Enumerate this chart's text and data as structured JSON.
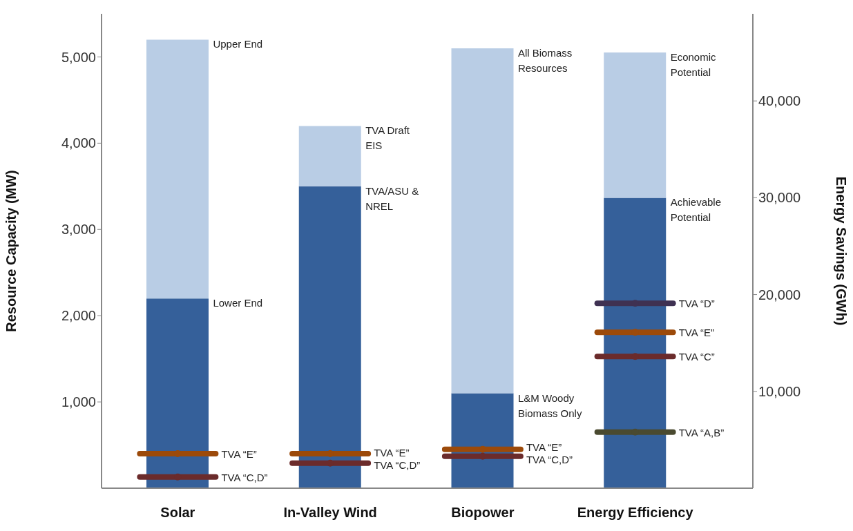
{
  "chart_data": {
    "type": "bar",
    "stacked": true,
    "categories": [
      "Solar",
      "In-Valley Wind",
      "Biopower",
      "Energy Efficiency"
    ],
    "ylabel": "Resource Capacity (MW)",
    "y2label": "Energy Savings (GWh)",
    "ylim": [
      0,
      5500
    ],
    "yticks": [
      {
        "value": 1000,
        "label": "1,000"
      },
      {
        "value": 2000,
        "label": "2,000"
      },
      {
        "value": 3000,
        "label": "3,000"
      },
      {
        "value": 4000,
        "label": "4,000"
      },
      {
        "value": 5000,
        "label": "5,000"
      }
    ],
    "y2lim": [
      0,
      49000
    ],
    "y2ticks": [
      {
        "value": 10000,
        "label": "10,000"
      },
      {
        "value": 20000,
        "label": "20,000"
      },
      {
        "value": 30000,
        "label": "30,000"
      },
      {
        "value": 40000,
        "label": "40,000"
      }
    ],
    "grid": false,
    "legend": false,
    "series": [
      {
        "color": "#35609a",
        "values": [
          2200,
          3500,
          1100,
          null
        ]
      },
      {
        "color": "#b9cde5",
        "values": [
          3000,
          700,
          4000,
          null
        ]
      },
      {
        "axis": "y2",
        "color": "#35609a",
        "values": [
          null,
          null,
          null,
          30000
        ]
      },
      {
        "axis": "y2",
        "color": "#b9cde5",
        "values": [
          null,
          null,
          null,
          15000
        ]
      },
      {
        "type": "scatter",
        "name": "TVA “E”",
        "color": "#9c4a0a",
        "values": [
          400,
          400,
          450,
          null
        ]
      },
      {
        "type": "scatter",
        "name": "TVA “C,D”",
        "color": "#6b2b2b",
        "values": [
          130,
          290,
          370,
          null
        ]
      },
      {
        "type": "scatter",
        "axis": "y2",
        "name": "TVA “D”",
        "color": "#3f3152",
        "values": [
          null,
          null,
          null,
          19100
        ]
      },
      {
        "type": "scatter",
        "axis": "y2",
        "name": "TVA “E”",
        "color": "#9c4a0a",
        "values": [
          null,
          null,
          null,
          16100
        ]
      },
      {
        "type": "scatter",
        "axis": "y2",
        "name": "TVA “C”",
        "color": "#6b2b2b",
        "values": [
          null,
          null,
          null,
          13600
        ]
      },
      {
        "type": "scatter",
        "axis": "y2",
        "name": "TVA “A,B”",
        "color": "#4a4a30",
        "values": [
          null,
          null,
          null,
          5800
        ]
      }
    ],
    "annotations": [
      "Upper End",
      "Lower End",
      "TVA Draft EIS",
      "TVA/ASU & NREL",
      "All Biomass Resources",
      "L&M Woody Biomass Only",
      "Economic Potential",
      "Achievable Potential"
    ]
  }
}
